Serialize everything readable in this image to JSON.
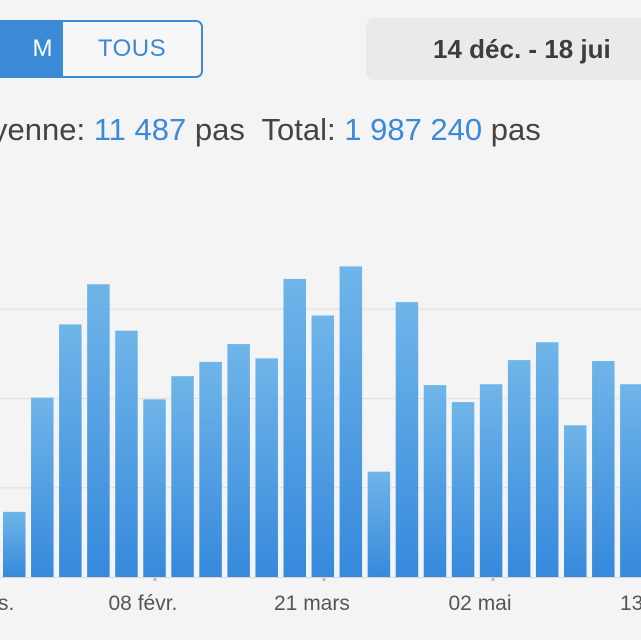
{
  "range_toggle": {
    "active_label": "M",
    "inactive_label": "TOUS"
  },
  "date_range": "14 déc. - 18 jui",
  "stats": {
    "average_label": "yenne:",
    "average_value": "11 487",
    "average_unit": "pas",
    "total_label": "Total:",
    "total_value": "1 987 240",
    "total_unit": "pas"
  },
  "colors": {
    "accent": "#3a8ad8",
    "bar_top": "#6fb5e9",
    "bar_bottom": "#3689dc",
    "text": "#444444"
  },
  "chart_data": {
    "type": "bar",
    "x_tick_labels": [
      "s.",
      "08 févr.",
      "21 mars",
      "02 mai",
      "13"
    ],
    "gridlines": true,
    "series": [
      {
        "values": [
          7300,
          20100,
          28300,
          32800,
          27600,
          19900,
          22500,
          24100,
          26100,
          24500,
          33400,
          29300,
          34800,
          11800,
          30800,
          21500,
          19600,
          21600,
          24300,
          26300,
          17000,
          24200,
          21600
        ]
      }
    ],
    "ylim": [
      0,
      40000
    ]
  }
}
